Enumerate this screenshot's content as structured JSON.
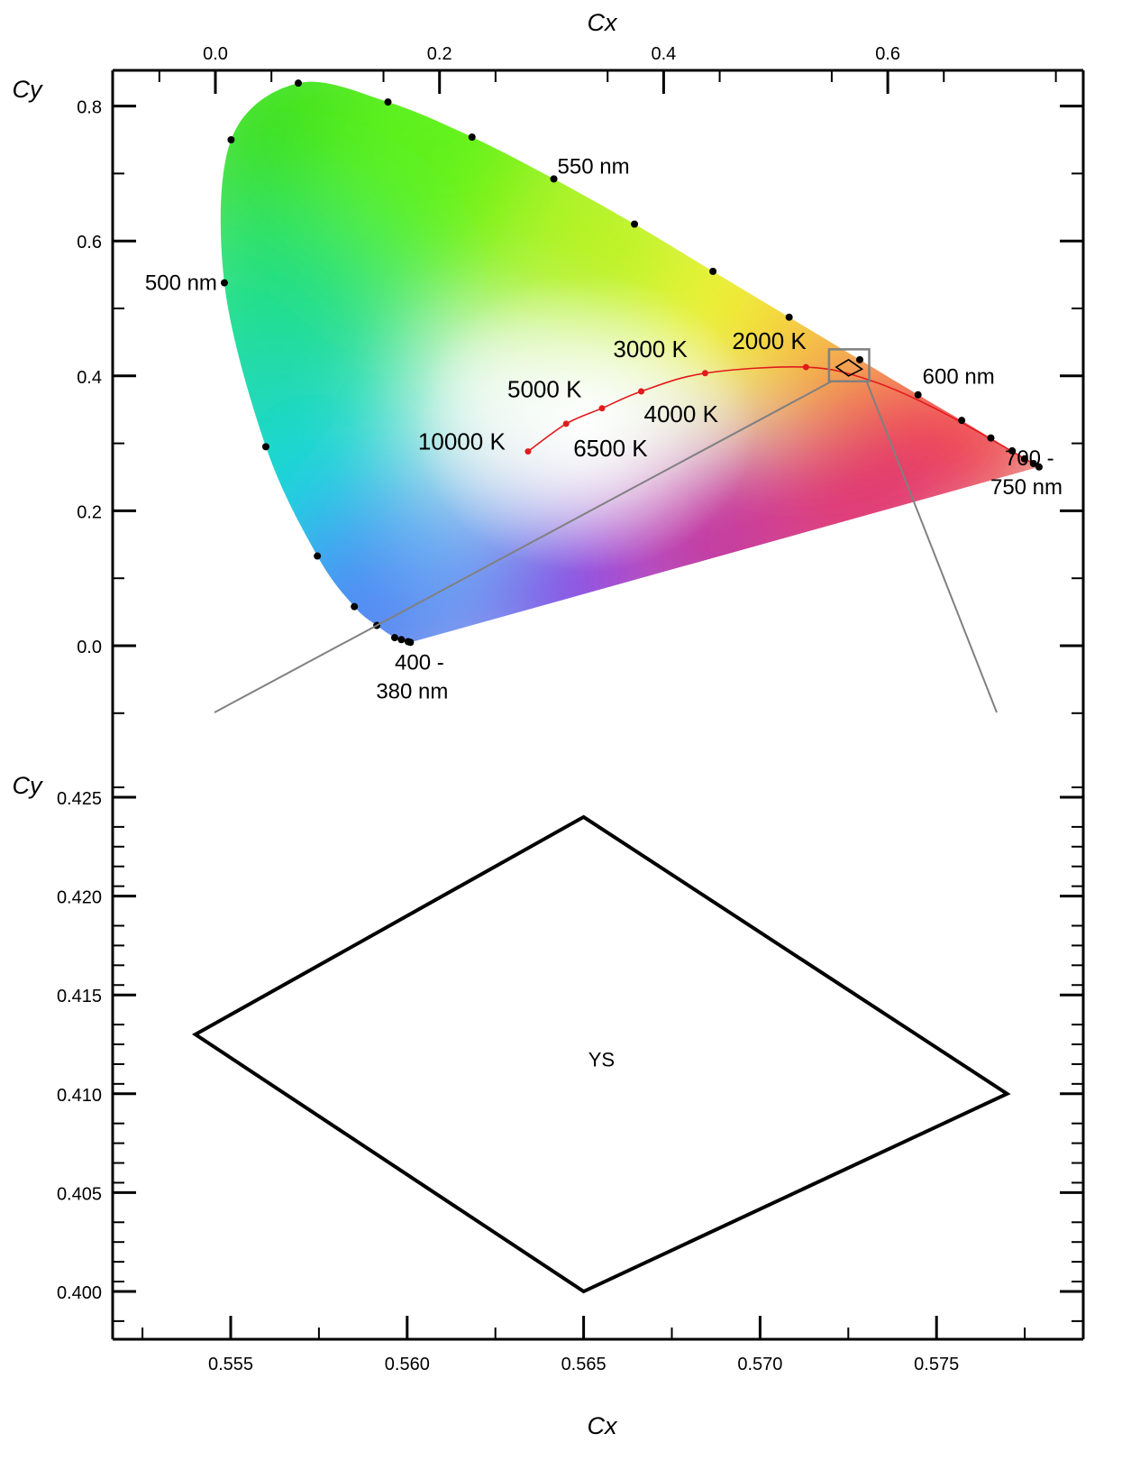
{
  "chart_data": [
    {
      "type": "scatter",
      "subtype": "cie-1931-chromaticity",
      "xlabel": "Cx",
      "ylabel": "Cy",
      "xlim": [
        -0.09,
        0.775
      ],
      "ylim": [
        -0.1,
        0.855
      ],
      "x_ticks": [
        {
          "value": 0.0,
          "label": "0.0"
        },
        {
          "value": 0.2,
          "label": "0.2"
        },
        {
          "value": 0.4,
          "label": "0.4"
        },
        {
          "value": 0.6,
          "label": "0.6"
        }
      ],
      "y_ticks": [
        {
          "value": 0.0,
          "label": "0.0"
        },
        {
          "value": 0.2,
          "label": "0.2"
        },
        {
          "value": 0.4,
          "label": "0.4"
        },
        {
          "value": 0.6,
          "label": "0.6"
        },
        {
          "value": 0.8,
          "label": "0.8"
        }
      ],
      "x_axis_position": "top",
      "grid": false,
      "spectral_locus_points": [
        [
          0.174,
          0.005
        ],
        [
          0.172,
          0.006
        ],
        [
          0.166,
          0.009
        ],
        [
          0.16,
          0.012
        ],
        [
          0.144,
          0.03
        ],
        [
          0.124,
          0.058
        ],
        [
          0.091,
          0.133
        ],
        [
          0.045,
          0.295
        ],
        [
          0.008,
          0.538
        ],
        [
          0.014,
          0.75
        ],
        [
          0.074,
          0.834
        ],
        [
          0.154,
          0.806
        ],
        [
          0.229,
          0.754
        ],
        [
          0.302,
          0.692
        ],
        [
          0.374,
          0.625
        ],
        [
          0.444,
          0.555
        ],
        [
          0.512,
          0.487
        ],
        [
          0.575,
          0.424
        ],
        [
          0.627,
          0.372
        ],
        [
          0.666,
          0.334
        ],
        [
          0.692,
          0.308
        ],
        [
          0.711,
          0.289
        ],
        [
          0.722,
          0.277
        ],
        [
          0.73,
          0.27
        ],
        [
          0.735,
          0.265
        ]
      ],
      "planckian_locus": [
        {
          "temp_k": 10000,
          "label": "10000 K",
          "x": 0.279,
          "y": 0.288
        },
        {
          "temp_k": 6500,
          "label": "6500 K",
          "x": 0.313,
          "y": 0.329
        },
        {
          "temp_k": 5000,
          "label": "5000 K",
          "x": 0.345,
          "y": 0.352
        },
        {
          "temp_k": 4000,
          "label": "4000 K",
          "x": 0.38,
          "y": 0.377
        },
        {
          "temp_k": 3000,
          "label": "3000 K",
          "x": 0.437,
          "y": 0.404
        },
        {
          "temp_k": 2000,
          "label": "2000 K",
          "x": 0.527,
          "y": 0.413
        }
      ],
      "wavelength_labels": [
        {
          "text": "400 -",
          "x": 0.174,
          "y": 0.005,
          "placement": "below"
        },
        {
          "text": "380 nm",
          "x": 0.174,
          "y": 0.005,
          "placement": "below"
        },
        {
          "text": "500 nm",
          "x": 0.008,
          "y": 0.538,
          "placement": "left"
        },
        {
          "text": "550 nm",
          "x": 0.302,
          "y": 0.692,
          "placement": "right"
        },
        {
          "text": "600 nm",
          "x": 0.627,
          "y": 0.372,
          "placement": "right"
        },
        {
          "text": "700 -",
          "x": 0.735,
          "y": 0.265,
          "placement": "right"
        },
        {
          "text": "750 nm",
          "x": 0.735,
          "y": 0.265,
          "placement": "right"
        }
      ],
      "zoom_box": {
        "x": [
          0.554,
          0.577
        ],
        "y": [
          0.4,
          0.426
        ]
      }
    },
    {
      "type": "line",
      "subtype": "zoomed-detail",
      "xlabel": "Cx",
      "ylabel": "Cy",
      "xlim": [
        0.5518,
        0.5795
      ],
      "ylim": [
        0.3975,
        0.4262
      ],
      "x_ticks": [
        {
          "value": 0.555,
          "label": "0.555"
        },
        {
          "value": 0.56,
          "label": "0.560"
        },
        {
          "value": 0.565,
          "label": "0.565"
        },
        {
          "value": 0.57,
          "label": "0.570"
        },
        {
          "value": 0.575,
          "label": "0.575"
        }
      ],
      "y_ticks": [
        {
          "value": 0.4,
          "label": "0.400"
        },
        {
          "value": 0.405,
          "label": "0.405"
        },
        {
          "value": 0.41,
          "label": "0.410"
        },
        {
          "value": 0.415,
          "label": "0.415"
        },
        {
          "value": 0.42,
          "label": "0.420"
        },
        {
          "value": 0.425,
          "label": "0.425"
        }
      ],
      "grid": false,
      "series": [
        {
          "name": "YS",
          "points": [
            [
              0.565,
              0.424
            ],
            [
              0.577,
              0.41
            ],
            [
              0.565,
              0.4
            ],
            [
              0.554,
              0.413
            ]
          ],
          "closed": true
        }
      ]
    }
  ],
  "colors": {
    "frame": "#000000",
    "planckian_line": "#e31a1c",
    "planckian_dots": "#e31a1c",
    "locus_dots": "#000000",
    "zoom_lines": "#808080"
  }
}
